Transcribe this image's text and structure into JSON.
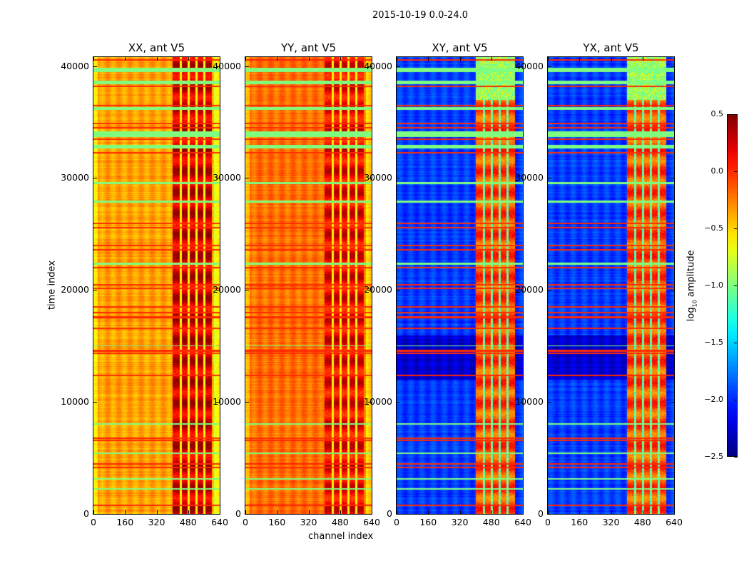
{
  "suptitle": "2015-10-19 0.0-24.0",
  "chart_data": {
    "type": "heatmap",
    "xlabel": "channel index",
    "ylabel": "time index",
    "xlim": [
      0,
      640
    ],
    "ylim": [
      0,
      40800
    ],
    "xticks": [
      "0",
      "160",
      "320",
      "480",
      "640"
    ],
    "xtick_values": [
      0,
      160,
      320,
      480,
      640
    ],
    "yticks": [
      "0",
      "10000",
      "20000",
      "30000",
      "40000"
    ],
    "ytick_values": [
      0,
      10000,
      20000,
      30000,
      40000
    ],
    "colormap": "jet",
    "colorbar": {
      "label_prefix": "log",
      "label_sub": "10",
      "label_suffix": " amplitude",
      "range": [
        -2.5,
        0.5
      ],
      "ticks": [
        "0.5",
        "0.0",
        "−0.5",
        "−1.0",
        "−1.5",
        "−2.0",
        "−2.5"
      ],
      "tick_values": [
        0.5,
        0.0,
        -0.5,
        -1.0,
        -1.5,
        -2.0,
        -2.5
      ]
    },
    "rfi_channel_range": [
      400,
      600
    ],
    "flagged_green_bands": [
      [
        39500,
        39900
      ],
      [
        38400,
        38700
      ],
      [
        36100,
        36400
      ],
      [
        33700,
        34200
      ],
      [
        32700,
        33000
      ],
      [
        29500,
        29700
      ],
      [
        27800,
        28000
      ],
      [
        22300,
        22500
      ],
      [
        15000,
        15100
      ],
      [
        8000,
        8100
      ],
      [
        5400,
        5500
      ],
      [
        3100,
        3200
      ],
      [
        2200,
        2300
      ]
    ],
    "flagged_red_lines": [
      40600,
      38200,
      36500,
      34900,
      34500,
      33500,
      32300,
      26000,
      25600,
      24000,
      23600,
      22000,
      20500,
      20200,
      18500,
      18000,
      17600,
      16600,
      14600,
      14400,
      12400,
      6800,
      6600,
      4500,
      4200,
      800
    ],
    "panels": [
      {
        "title": "XX, ant V5",
        "base": -0.35,
        "rfi": 0.25,
        "cross": false
      },
      {
        "title": "YY, ant V5",
        "base": -0.2,
        "rfi": 0.15,
        "cross": false
      },
      {
        "title": "XY, ant V5",
        "base": -1.95,
        "rfi": -0.1,
        "cross": true
      },
      {
        "title": "YX, ant V5",
        "base": -1.95,
        "rfi": -0.1,
        "cross": true
      }
    ]
  }
}
